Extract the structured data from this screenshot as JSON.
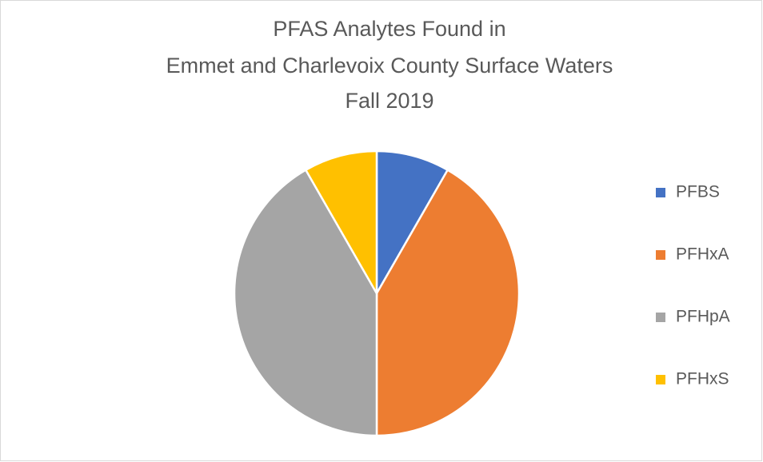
{
  "chart_data": {
    "type": "pie",
    "title": [
      "PFAS Analytes Found in",
      "Emmet and Charlevoix County Surface Waters",
      "Fall 2019"
    ],
    "categories": [
      "PFBS",
      "PFHxA",
      "PFHpA",
      "PFHxS"
    ],
    "values": [
      8.3,
      41.7,
      41.7,
      8.3
    ],
    "colors": [
      "#4472c4",
      "#ed7d31",
      "#a5a5a5",
      "#ffc000"
    ],
    "legend": "right"
  }
}
